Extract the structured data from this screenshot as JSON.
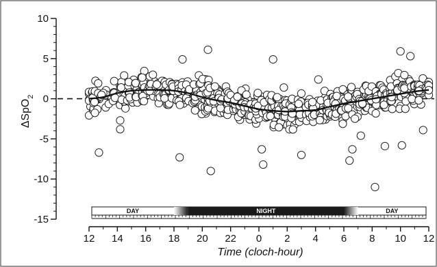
{
  "chart_data": {
    "type": "scatter",
    "xlabel": "Time (cloch-hour)",
    "ylabel": "ΔSpO",
    "ylabel_subscript": "2",
    "ylim": [
      -15,
      10
    ],
    "xlim_hours": [
      0,
      24
    ],
    "y_ticks": [
      -15,
      -10,
      -5,
      0,
      5,
      10
    ],
    "x_tick_labels": [
      "12",
      "14",
      "16",
      "18",
      "20",
      "22",
      "0",
      "2",
      "4",
      "6",
      "8",
      "10",
      "12"
    ],
    "zero_reference_line": "dashed",
    "grid": false,
    "fit_curve": {
      "x_hours": [
        0,
        1,
        2,
        3,
        4,
        5,
        6,
        7,
        8,
        9,
        10,
        11,
        12,
        13,
        14,
        15,
        16,
        17,
        18,
        19,
        20,
        21,
        22,
        23,
        24
      ],
      "y": [
        0.0,
        0.2,
        0.7,
        1.0,
        1.1,
        1.1,
        1.0,
        0.7,
        0.2,
        -0.2,
        -0.5,
        -0.9,
        -1.3,
        -1.5,
        -1.6,
        -1.5,
        -1.4,
        -1.0,
        -0.6,
        -0.3,
        0.0,
        0.3,
        0.6,
        0.9,
        1.1
      ]
    },
    "outliers": [
      {
        "x_hour": 0.7,
        "y": -6.7
      },
      {
        "x_hour": 6.4,
        "y": -7.3
      },
      {
        "x_hour": 8.6,
        "y": -9.0
      },
      {
        "x_hour": 8.4,
        "y": 6.1
      },
      {
        "x_hour": 12.3,
        "y": -8.2
      },
      {
        "x_hour": 12.2,
        "y": -6.3
      },
      {
        "x_hour": 13.0,
        "y": 4.9
      },
      {
        "x_hour": 15.0,
        "y": -7.0
      },
      {
        "x_hour": 16.2,
        "y": 2.4
      },
      {
        "x_hour": 18.4,
        "y": -7.7
      },
      {
        "x_hour": 18.6,
        "y": -6.3
      },
      {
        "x_hour": 19.2,
        "y": -4.6
      },
      {
        "x_hour": 20.2,
        "y": -11.0
      },
      {
        "x_hour": 20.9,
        "y": -5.9
      },
      {
        "x_hour": 22.0,
        "y": 5.9
      },
      {
        "x_hour": 22.1,
        "y": -5.8
      },
      {
        "x_hour": 22.7,
        "y": 5.3
      },
      {
        "x_hour": 23.6,
        "y": -3.9
      },
      {
        "x_hour": 6.6,
        "y": 4.9
      },
      {
        "x_hour": 2.2,
        "y": -3.8
      },
      {
        "x_hour": 2.2,
        "y": -2.7
      }
    ],
    "points": {
      "x_hours_per_cluster_center": [
        0.0,
        0.5,
        1.0,
        1.5,
        2.0,
        2.5,
        3.0,
        3.5,
        4.0,
        4.5,
        5.0,
        5.5,
        6.0,
        6.5,
        7.0,
        7.5,
        8.0,
        8.5,
        9.0,
        9.5,
        10.0,
        10.5,
        11.0,
        11.5,
        12.0,
        12.5,
        13.0,
        13.5,
        14.0,
        14.5,
        15.0,
        15.5,
        16.0,
        16.5,
        17.0,
        17.5,
        18.0,
        18.5,
        19.0,
        19.5,
        20.0,
        20.5,
        21.0,
        21.5,
        22.0,
        22.5,
        23.0,
        23.5,
        24.0
      ],
      "y_spread_per_cluster": [
        3.0,
        3.2,
        2.0,
        1.6,
        2.4,
        2.6,
        2.6,
        2.8,
        2.8,
        2.6,
        2.8,
        2.8,
        2.8,
        2.4,
        2.4,
        2.4,
        3.0,
        3.0,
        3.0,
        2.4,
        2.6,
        2.6,
        2.8,
        2.8,
        3.0,
        3.0,
        3.0,
        3.2,
        3.2,
        2.8,
        2.8,
        2.4,
        2.4,
        2.6,
        3.0,
        3.0,
        3.2,
        3.2,
        2.6,
        2.6,
        2.4,
        2.8,
        3.0,
        3.0,
        3.0,
        3.0,
        2.8,
        2.4,
        2.0
      ],
      "count_per_cluster": [
        14,
        18,
        8,
        6,
        16,
        18,
        18,
        18,
        18,
        18,
        18,
        18,
        18,
        18,
        16,
        16,
        18,
        18,
        18,
        18,
        18,
        18,
        18,
        18,
        18,
        18,
        18,
        18,
        18,
        18,
        18,
        18,
        18,
        18,
        18,
        18,
        18,
        18,
        18,
        18,
        18,
        18,
        18,
        18,
        18,
        18,
        18,
        18,
        12
      ]
    },
    "bands": [
      {
        "label": "DAY",
        "start_hour": 0,
        "end_hour": 6.0,
        "color": "#ffffff",
        "text_color": "#111111"
      },
      {
        "label": "NIGHT",
        "start_hour": 7.0,
        "end_hour": 18.0,
        "color": "#1a1a1a",
        "text_color": "#ffffff"
      },
      {
        "label": "DAY",
        "start_hour": 19.0,
        "end_hour": 24,
        "color": "#ffffff",
        "text_color": "#111111"
      }
    ],
    "band_transitions": [
      {
        "from_hour": 6.0,
        "to_hour": 7.0,
        "direction": "to-dark"
      },
      {
        "from_hour": 18.0,
        "to_hour": 19.0,
        "direction": "to-light"
      }
    ]
  }
}
